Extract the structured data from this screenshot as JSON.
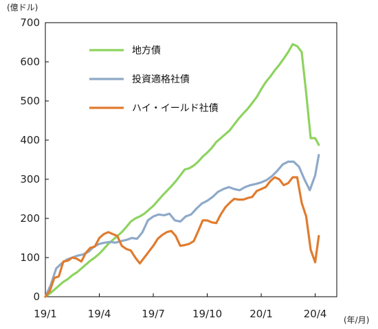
{
  "chart_data": {
    "type": "line",
    "title": "",
    "ylabel": "(億ドル)",
    "xlabel": "(年/月)",
    "ylim": [
      0,
      700
    ],
    "yticks": [
      0,
      100,
      200,
      300,
      400,
      500,
      600,
      700
    ],
    "xlim": [
      0,
      16.2
    ],
    "xticks": [
      {
        "x": 0,
        "label": "19/1"
      },
      {
        "x": 3,
        "label": "19/4"
      },
      {
        "x": 6,
        "label": "19/7"
      },
      {
        "x": 9,
        "label": "19/10"
      },
      {
        "x": 12,
        "label": "20/1"
      },
      {
        "x": 15,
        "label": "20/4"
      }
    ],
    "grid": false,
    "legend_position": "top-left",
    "series": [
      {
        "name": "地方債",
        "color": "#8dd35f",
        "points": [
          [
            0,
            0
          ],
          [
            0.25,
            8
          ],
          [
            0.5,
            18
          ],
          [
            0.75,
            28
          ],
          [
            1,
            38
          ],
          [
            1.25,
            45
          ],
          [
            1.5,
            55
          ],
          [
            1.75,
            62
          ],
          [
            2,
            72
          ],
          [
            2.25,
            82
          ],
          [
            2.5,
            92
          ],
          [
            2.75,
            100
          ],
          [
            3,
            110
          ],
          [
            3.25,
            122
          ],
          [
            3.5,
            135
          ],
          [
            3.75,
            145
          ],
          [
            4,
            155
          ],
          [
            4.25,
            165
          ],
          [
            4.5,
            178
          ],
          [
            4.75,
            192
          ],
          [
            5,
            200
          ],
          [
            5.25,
            205
          ],
          [
            5.5,
            212
          ],
          [
            5.75,
            222
          ],
          [
            6,
            232
          ],
          [
            6.25,
            245
          ],
          [
            6.5,
            258
          ],
          [
            6.75,
            270
          ],
          [
            7,
            282
          ],
          [
            7.25,
            295
          ],
          [
            7.5,
            310
          ],
          [
            7.75,
            325
          ],
          [
            8,
            328
          ],
          [
            8.25,
            335
          ],
          [
            8.5,
            345
          ],
          [
            8.75,
            358
          ],
          [
            9,
            368
          ],
          [
            9.25,
            380
          ],
          [
            9.5,
            395
          ],
          [
            9.75,
            405
          ],
          [
            10,
            415
          ],
          [
            10.25,
            425
          ],
          [
            10.5,
            440
          ],
          [
            10.75,
            455
          ],
          [
            11,
            468
          ],
          [
            11.25,
            480
          ],
          [
            11.5,
            495
          ],
          [
            11.75,
            510
          ],
          [
            12,
            530
          ],
          [
            12.25,
            548
          ],
          [
            12.5,
            562
          ],
          [
            12.75,
            578
          ],
          [
            13,
            592
          ],
          [
            13.25,
            608
          ],
          [
            13.5,
            625
          ],
          [
            13.75,
            645
          ],
          [
            14,
            640
          ],
          [
            14.25,
            625
          ],
          [
            14.5,
            520
          ],
          [
            14.75,
            405
          ],
          [
            15,
            405
          ],
          [
            15.2,
            388
          ]
        ]
      },
      {
        "name": "投資適格社債",
        "color": "#8ea9c8",
        "points": [
          [
            0,
            0
          ],
          [
            0.3,
            30
          ],
          [
            0.6,
            72
          ],
          [
            0.9,
            85
          ],
          [
            1.2,
            95
          ],
          [
            1.5,
            100
          ],
          [
            1.8,
            105
          ],
          [
            2.1,
            108
          ],
          [
            2.4,
            115
          ],
          [
            2.7,
            128
          ],
          [
            3,
            135
          ],
          [
            3.3,
            138
          ],
          [
            3.6,
            140
          ],
          [
            3.9,
            138
          ],
          [
            4.2,
            142
          ],
          [
            4.5,
            145
          ],
          [
            4.8,
            150
          ],
          [
            5.1,
            148
          ],
          [
            5.4,
            165
          ],
          [
            5.7,
            195
          ],
          [
            6,
            205
          ],
          [
            6.3,
            210
          ],
          [
            6.6,
            208
          ],
          [
            6.9,
            212
          ],
          [
            7.2,
            195
          ],
          [
            7.5,
            192
          ],
          [
            7.8,
            205
          ],
          [
            8.1,
            210
          ],
          [
            8.4,
            225
          ],
          [
            8.7,
            238
          ],
          [
            9,
            245
          ],
          [
            9.3,
            255
          ],
          [
            9.6,
            268
          ],
          [
            9.9,
            275
          ],
          [
            10.2,
            280
          ],
          [
            10.5,
            275
          ],
          [
            10.8,
            272
          ],
          [
            11.1,
            280
          ],
          [
            11.4,
            285
          ],
          [
            11.7,
            288
          ],
          [
            12,
            292
          ],
          [
            12.3,
            298
          ],
          [
            12.6,
            308
          ],
          [
            12.9,
            322
          ],
          [
            13.2,
            338
          ],
          [
            13.5,
            345
          ],
          [
            13.8,
            345
          ],
          [
            14.1,
            332
          ],
          [
            14.4,
            300
          ],
          [
            14.7,
            272
          ],
          [
            15,
            310
          ],
          [
            15.2,
            362
          ]
        ]
      },
      {
        "name": "ハイ・イールド社債",
        "color": "#e07b2e",
        "points": [
          [
            0,
            0
          ],
          [
            0.25,
            15
          ],
          [
            0.5,
            48
          ],
          [
            0.75,
            52
          ],
          [
            1,
            90
          ],
          [
            1.25,
            92
          ],
          [
            1.5,
            100
          ],
          [
            1.75,
            97
          ],
          [
            2,
            90
          ],
          [
            2.25,
            112
          ],
          [
            2.5,
            125
          ],
          [
            2.75,
            128
          ],
          [
            3,
            150
          ],
          [
            3.25,
            160
          ],
          [
            3.5,
            165
          ],
          [
            3.75,
            160
          ],
          [
            4,
            155
          ],
          [
            4.25,
            130
          ],
          [
            4.5,
            122
          ],
          [
            4.75,
            118
          ],
          [
            5,
            100
          ],
          [
            5.25,
            85
          ],
          [
            5.5,
            100
          ],
          [
            5.75,
            115
          ],
          [
            6,
            130
          ],
          [
            6.25,
            148
          ],
          [
            6.5,
            158
          ],
          [
            6.75,
            165
          ],
          [
            7,
            168
          ],
          [
            7.25,
            155
          ],
          [
            7.5,
            130
          ],
          [
            7.75,
            132
          ],
          [
            8,
            135
          ],
          [
            8.25,
            142
          ],
          [
            8.5,
            168
          ],
          [
            8.75,
            195
          ],
          [
            9,
            195
          ],
          [
            9.25,
            190
          ],
          [
            9.5,
            188
          ],
          [
            9.75,
            210
          ],
          [
            10,
            228
          ],
          [
            10.25,
            240
          ],
          [
            10.5,
            250
          ],
          [
            10.75,
            248
          ],
          [
            11,
            248
          ],
          [
            11.25,
            252
          ],
          [
            11.5,
            255
          ],
          [
            11.75,
            270
          ],
          [
            12,
            275
          ],
          [
            12.25,
            280
          ],
          [
            12.5,
            295
          ],
          [
            12.75,
            305
          ],
          [
            13,
            300
          ],
          [
            13.25,
            285
          ],
          [
            13.5,
            290
          ],
          [
            13.75,
            305
          ],
          [
            14,
            305
          ],
          [
            14.25,
            240
          ],
          [
            14.5,
            205
          ],
          [
            14.75,
            120
          ],
          [
            15,
            88
          ],
          [
            15.2,
            155
          ]
        ]
      }
    ]
  }
}
